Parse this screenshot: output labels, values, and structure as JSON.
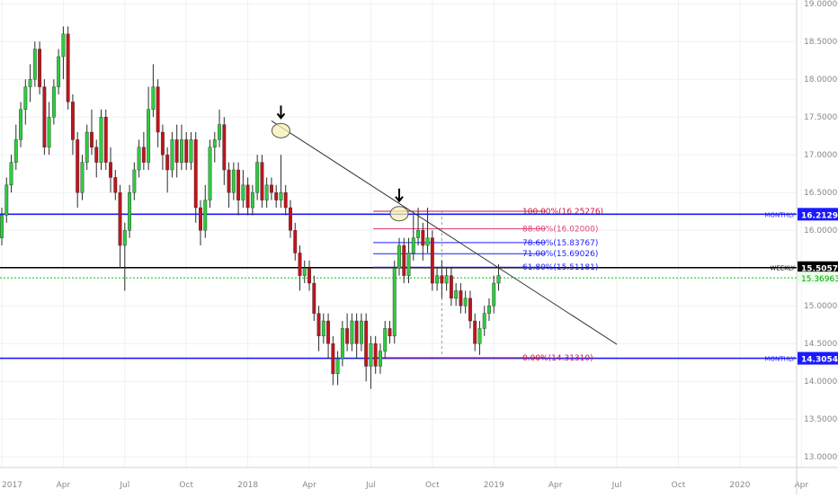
{
  "chart_data": {
    "type": "candlestick",
    "timeframe_labels": [
      "2017",
      "Apr",
      "Jul",
      "Oct",
      "2018",
      "Apr",
      "Jul",
      "Oct",
      "2019",
      "Apr",
      "Jul",
      "Oct",
      "2020",
      "Apr"
    ],
    "y_ticks": [
      "19.00000",
      "18.50000",
      "18.00000",
      "17.50000",
      "17.00000",
      "16.50000",
      "16.00000",
      "15.50000",
      "15.00000",
      "14.50000",
      "14.00000",
      "13.50000",
      "13.00000"
    ],
    "ylim": [
      12.86,
      19.05
    ],
    "x_range_weeks": [
      0,
      168
    ],
    "grid": true,
    "colors": {
      "up": "#2ecc40",
      "down": "#c0141c",
      "wick": "#2b2b2b",
      "blue_level": "#1a1aff",
      "fib": "#1a1aff",
      "fib_extreme": "#c8143c",
      "fib_88": "#e0407a"
    },
    "price_labels": [
      {
        "value": 16.21299,
        "text": "16.21299",
        "tag": "MONTHLY",
        "color": "#1a1aff"
      },
      {
        "value": 15.50573,
        "text": "15.50573",
        "tag": "WEEKLY",
        "color": "#000000"
      },
      {
        "value": 15.36963,
        "text": "15.36963",
        "tag": "",
        "color": "#00c800"
      },
      {
        "value": 14.30541,
        "text": "14.30541",
        "tag": "MONTHLY",
        "color": "#1a1aff"
      }
    ],
    "fib_levels": [
      {
        "label": "100.00%(16.25276)",
        "value": 16.25276,
        "color": "#c8143c"
      },
      {
        "label": "88.00%(16.02000)",
        "value": 16.02,
        "color": "#e0407a"
      },
      {
        "label": "78.60%(15.83767)",
        "value": 15.83767,
        "color": "#1a1aff"
      },
      {
        "label": "71.00%(15.69026)",
        "value": 15.69026,
        "color": "#1a1aff"
      },
      {
        "label": "61.80%(15.51181)",
        "value": 15.51181,
        "color": "#1a1aff"
      },
      {
        "label": "0.00%(14.31310)",
        "value": 14.3131,
        "color": "#c8143c"
      }
    ],
    "fib_x_range": [
      78.5,
      115
    ],
    "trendline": {
      "x1": 57,
      "y1": 17.45,
      "x2": 130,
      "y2": 14.49
    },
    "highlight_points": [
      {
        "x": 59,
        "y": 17.32
      },
      {
        "x": 84,
        "y": 16.22
      }
    ],
    "candles": [
      [
        0,
        15.9,
        16.3,
        15.8,
        16.2
      ],
      [
        1,
        16.2,
        16.7,
        16.1,
        16.6
      ],
      [
        2,
        16.6,
        17.0,
        16.5,
        16.9
      ],
      [
        3,
        16.9,
        17.4,
        16.8,
        17.2
      ],
      [
        4,
        17.2,
        17.7,
        17.1,
        17.6
      ],
      [
        5,
        17.6,
        18.0,
        17.4,
        17.9
      ],
      [
        6,
        17.9,
        18.2,
        17.7,
        18.0
      ],
      [
        7,
        18.0,
        18.5,
        17.9,
        18.4
      ],
      [
        8,
        18.4,
        18.5,
        17.8,
        17.9
      ],
      [
        9,
        17.9,
        18.0,
        17.0,
        17.1
      ],
      [
        10,
        17.1,
        17.7,
        17.0,
        17.5
      ],
      [
        11,
        17.5,
        18.0,
        17.4,
        17.9
      ],
      [
        12,
        17.9,
        18.4,
        17.8,
        18.3
      ],
      [
        13,
        18.3,
        18.7,
        18.0,
        18.6
      ],
      [
        14,
        18.6,
        18.7,
        17.6,
        17.7
      ],
      [
        15,
        17.7,
        17.8,
        17.0,
        17.2
      ],
      [
        16,
        17.2,
        17.3,
        16.3,
        16.5
      ],
      [
        17,
        16.5,
        17.0,
        16.4,
        16.9
      ],
      [
        18,
        16.9,
        17.4,
        16.8,
        17.3
      ],
      [
        19,
        17.3,
        17.6,
        17.0,
        17.1
      ],
      [
        20,
        17.1,
        17.2,
        16.7,
        16.9
      ],
      [
        21,
        16.9,
        17.6,
        16.8,
        17.5
      ],
      [
        22,
        17.5,
        17.6,
        16.8,
        16.9
      ],
      [
        23,
        16.9,
        17.1,
        16.5,
        16.7
      ],
      [
        24,
        16.7,
        16.8,
        16.4,
        16.5
      ],
      [
        25,
        16.5,
        16.6,
        15.5,
        15.8
      ],
      [
        26,
        15.8,
        16.1,
        15.2,
        16.0
      ],
      [
        27,
        16.0,
        16.6,
        15.9,
        16.5
      ],
      [
        28,
        16.5,
        16.9,
        16.4,
        16.8
      ],
      [
        29,
        16.8,
        17.2,
        16.7,
        17.1
      ],
      [
        30,
        17.1,
        17.3,
        16.8,
        16.9
      ],
      [
        31,
        16.9,
        17.9,
        16.8,
        17.6
      ],
      [
        32,
        17.6,
        18.2,
        17.5,
        17.9
      ],
      [
        33,
        17.9,
        18.0,
        17.1,
        17.3
      ],
      [
        34,
        17.3,
        17.4,
        16.8,
        17.0
      ],
      [
        35,
        17.0,
        17.1,
        16.5,
        16.8
      ],
      [
        36,
        16.8,
        17.3,
        16.7,
        17.2
      ],
      [
        37,
        17.2,
        17.4,
        16.7,
        16.9
      ],
      [
        38,
        16.9,
        17.4,
        16.8,
        17.2
      ],
      [
        39,
        17.2,
        17.3,
        16.8,
        16.9
      ],
      [
        40,
        16.9,
        17.3,
        16.8,
        17.2
      ],
      [
        41,
        17.2,
        17.3,
        16.1,
        16.3
      ],
      [
        42,
        16.3,
        16.4,
        15.8,
        16.0
      ],
      [
        43,
        16.0,
        16.6,
        15.9,
        16.4
      ],
      [
        44,
        16.4,
        17.2,
        16.3,
        17.1
      ],
      [
        45,
        17.1,
        17.3,
        16.9,
        17.2
      ],
      [
        46,
        17.2,
        17.6,
        17.1,
        17.4
      ],
      [
        47,
        17.4,
        17.5,
        16.6,
        16.8
      ],
      [
        48,
        16.8,
        16.9,
        16.3,
        16.5
      ],
      [
        49,
        16.5,
        16.9,
        16.4,
        16.8
      ],
      [
        50,
        16.8,
        16.9,
        16.2,
        16.4
      ],
      [
        51,
        16.4,
        16.8,
        16.3,
        16.6
      ],
      [
        52,
        16.6,
        16.7,
        16.2,
        16.3
      ],
      [
        53,
        16.3,
        16.6,
        16.2,
        16.5
      ],
      [
        54,
        16.5,
        17.0,
        16.4,
        16.9
      ],
      [
        55,
        16.9,
        17.0,
        16.3,
        16.4
      ],
      [
        56,
        16.4,
        16.7,
        16.3,
        16.6
      ],
      [
        57,
        16.6,
        16.7,
        16.4,
        16.5
      ],
      [
        58,
        16.5,
        16.6,
        16.3,
        16.4
      ],
      [
        59,
        16.4,
        17.0,
        16.3,
        16.5
      ],
      [
        60,
        16.5,
        16.6,
        16.2,
        16.3
      ],
      [
        61,
        16.3,
        16.4,
        15.9,
        16.0
      ],
      [
        62,
        16.0,
        16.1,
        15.6,
        15.7
      ],
      [
        63,
        15.7,
        15.8,
        15.2,
        15.4
      ],
      [
        64,
        15.4,
        15.6,
        15.3,
        15.5
      ],
      [
        65,
        15.5,
        15.6,
        15.2,
        15.3
      ],
      [
        66,
        15.3,
        15.4,
        14.8,
        14.9
      ],
      [
        67,
        14.9,
        15.0,
        14.4,
        14.6
      ],
      [
        68,
        14.6,
        14.9,
        14.5,
        14.8
      ],
      [
        69,
        14.8,
        14.9,
        14.3,
        14.5
      ],
      [
        70,
        14.5,
        14.6,
        13.95,
        14.1
      ],
      [
        71,
        14.1,
        14.4,
        13.95,
        14.3
      ],
      [
        72,
        14.3,
        14.8,
        14.2,
        14.7
      ],
      [
        73,
        14.7,
        14.9,
        14.4,
        14.5
      ],
      [
        74,
        14.5,
        14.9,
        14.4,
        14.8
      ],
      [
        75,
        14.8,
        14.9,
        14.3,
        14.5
      ],
      [
        76,
        14.5,
        14.9,
        14.4,
        14.8
      ],
      [
        77,
        14.8,
        14.9,
        14.0,
        14.2
      ],
      [
        78,
        14.2,
        14.6,
        13.9,
        14.5
      ],
      [
        79,
        14.5,
        14.6,
        14.1,
        14.2
      ],
      [
        80,
        14.2,
        14.5,
        14.1,
        14.4
      ],
      [
        81,
        14.4,
        14.8,
        14.3,
        14.7
      ],
      [
        82,
        14.7,
        14.8,
        14.5,
        14.6
      ],
      [
        83,
        14.6,
        15.6,
        14.5,
        15.5
      ],
      [
        84,
        15.5,
        15.9,
        15.4,
        15.8
      ],
      [
        85,
        15.8,
        15.9,
        15.3,
        15.4
      ],
      [
        86,
        15.4,
        15.9,
        15.3,
        15.7
      ],
      [
        87,
        15.7,
        16.2,
        15.6,
        15.9
      ],
      [
        88,
        15.9,
        16.3,
        15.8,
        16.0
      ],
      [
        89,
        16.0,
        16.1,
        15.6,
        15.8
      ],
      [
        90,
        15.8,
        16.3,
        15.7,
        15.9
      ],
      [
        91,
        15.9,
        16.0,
        15.2,
        15.3
      ],
      [
        92,
        15.3,
        15.5,
        15.2,
        15.4
      ],
      [
        93,
        15.4,
        15.6,
        15.1,
        15.3
      ],
      [
        94,
        15.3,
        15.5,
        15.2,
        15.4
      ],
      [
        95,
        15.4,
        15.5,
        15.0,
        15.1
      ],
      [
        96,
        15.1,
        15.3,
        15.0,
        15.2
      ],
      [
        97,
        15.2,
        15.3,
        14.9,
        15.0
      ],
      [
        98,
        15.0,
        15.2,
        14.9,
        15.1
      ],
      [
        99,
        15.1,
        15.2,
        14.7,
        14.8
      ],
      [
        100,
        14.8,
        14.9,
        14.4,
        14.5
      ],
      [
        101,
        14.5,
        14.8,
        14.35,
        14.7
      ],
      [
        102,
        14.7,
        15.0,
        14.6,
        14.9
      ],
      [
        103,
        14.9,
        15.1,
        14.8,
        15.0
      ],
      [
        104,
        15.0,
        15.4,
        14.9,
        15.3
      ],
      [
        105,
        15.3,
        15.55,
        15.2,
        15.4
      ]
    ]
  }
}
